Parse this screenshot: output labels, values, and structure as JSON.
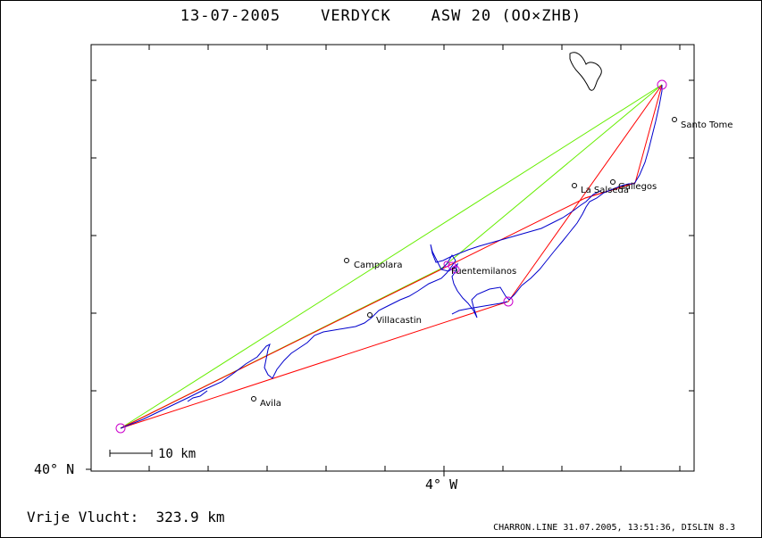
{
  "title": "13-07-2005    VERDYCK    ASW 20 (OO×ZHB)",
  "lat_label": "40° N",
  "lon_label": "4° W",
  "scale_label": "10 km",
  "distance_text": "Vrije Vlucht:  323.9 km",
  "footer": "CHARRON.LINE 31.07.2005, 13:51:36, DISLIN 8.3",
  "towns": [
    {
      "key": "santo-tome",
      "name": "Santo Tome"
    },
    {
      "key": "gallegos",
      "name": "Gallegos"
    },
    {
      "key": "la-salseda",
      "name": "La Salseda"
    },
    {
      "key": "campolara",
      "name": "Campolara"
    },
    {
      "key": "fuentemilanos",
      "name": "Fuentemilanos"
    },
    {
      "key": "villacastin",
      "name": "Villacastin"
    },
    {
      "key": "avila",
      "name": "Avila"
    }
  ],
  "colors": {
    "track": "#0000cc",
    "task_legs": "#ff0000",
    "free_legs": "#66ee00",
    "turnpoint": "#cc00cc",
    "frame": "#000000"
  }
}
